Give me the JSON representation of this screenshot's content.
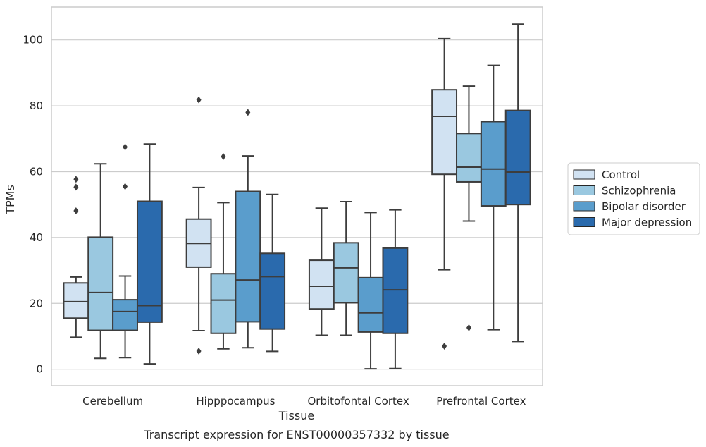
{
  "chart_data": {
    "type": "box",
    "title": "",
    "caption": "Transcript expression for ENST00000357332 by tissue",
    "xlabel": "Tissue",
    "ylabel": "TPMs",
    "ylim": [
      -5,
      110
    ],
    "yticks": [
      0,
      20,
      40,
      60,
      80,
      100
    ],
    "grid": "horizontal",
    "legend_position": "right",
    "categories": [
      "Cerebellum",
      "Hipppocampus",
      "Orbitofontal Cortex",
      "Prefrontal Cortex"
    ],
    "series": [
      {
        "name": "Control",
        "color": "#d1e2f2",
        "boxes": [
          {
            "whislo": 9.7,
            "q1": 15.5,
            "med": 20.5,
            "q3": 26.2,
            "whishi": 28.0,
            "fliers": [
              48.1,
              55.3,
              57.7
            ]
          },
          {
            "whislo": 11.7,
            "q1": 31.0,
            "med": 38.2,
            "q3": 45.6,
            "whishi": 55.2,
            "fliers": [
              5.5,
              81.8
            ]
          },
          {
            "whislo": 10.3,
            "q1": 18.3,
            "med": 25.2,
            "q3": 33.1,
            "whishi": 48.9,
            "fliers": []
          },
          {
            "whislo": 30.2,
            "q1": 59.2,
            "med": 76.8,
            "q3": 84.9,
            "whishi": 100.4,
            "fliers": [
              7.0
            ]
          }
        ]
      },
      {
        "name": "Schizophrenia",
        "color": "#9ac8e0",
        "boxes": [
          {
            "whislo": 3.3,
            "q1": 11.8,
            "med": 23.3,
            "q3": 40.1,
            "whishi": 62.4,
            "fliers": []
          },
          {
            "whislo": 6.2,
            "q1": 10.9,
            "med": 21.0,
            "q3": 29.0,
            "whishi": 50.6,
            "fliers": [
              64.6
            ]
          },
          {
            "whislo": 10.3,
            "q1": 20.2,
            "med": 30.8,
            "q3": 38.4,
            "whishi": 50.9,
            "fliers": []
          },
          {
            "whislo": 45.0,
            "q1": 56.9,
            "med": 61.4,
            "q3": 71.6,
            "whishi": 86.0,
            "fliers": [
              12.6
            ]
          }
        ]
      },
      {
        "name": "Bipolar disorder",
        "color": "#5a9dcc",
        "boxes": [
          {
            "whislo": 3.5,
            "q1": 11.8,
            "med": 17.5,
            "q3": 21.1,
            "whishi": 28.3,
            "fliers": [
              55.5,
              67.5
            ]
          },
          {
            "whislo": 6.5,
            "q1": 14.4,
            "med": 27.1,
            "q3": 54.0,
            "whishi": 64.8,
            "fliers": [
              78.0
            ]
          },
          {
            "whislo": 0.1,
            "q1": 11.3,
            "med": 17.1,
            "q3": 27.8,
            "whishi": 47.6,
            "fliers": []
          },
          {
            "whislo": 12.0,
            "q1": 49.6,
            "med": 60.8,
            "q3": 75.2,
            "whishi": 92.3,
            "fliers": []
          }
        ]
      },
      {
        "name": "Major depression",
        "color": "#2a6aad",
        "boxes": [
          {
            "whislo": 1.6,
            "q1": 14.3,
            "med": 19.3,
            "q3": 51.0,
            "whishi": 68.4,
            "fliers": []
          },
          {
            "whislo": 5.4,
            "q1": 12.2,
            "med": 28.1,
            "q3": 35.2,
            "whishi": 53.1,
            "fliers": []
          },
          {
            "whislo": 0.2,
            "q1": 10.9,
            "med": 24.1,
            "q3": 36.8,
            "whishi": 48.4,
            "fliers": []
          },
          {
            "whislo": 8.4,
            "q1": 50.0,
            "med": 59.9,
            "q3": 78.6,
            "whishi": 104.8,
            "fliers": []
          }
        ]
      }
    ]
  }
}
